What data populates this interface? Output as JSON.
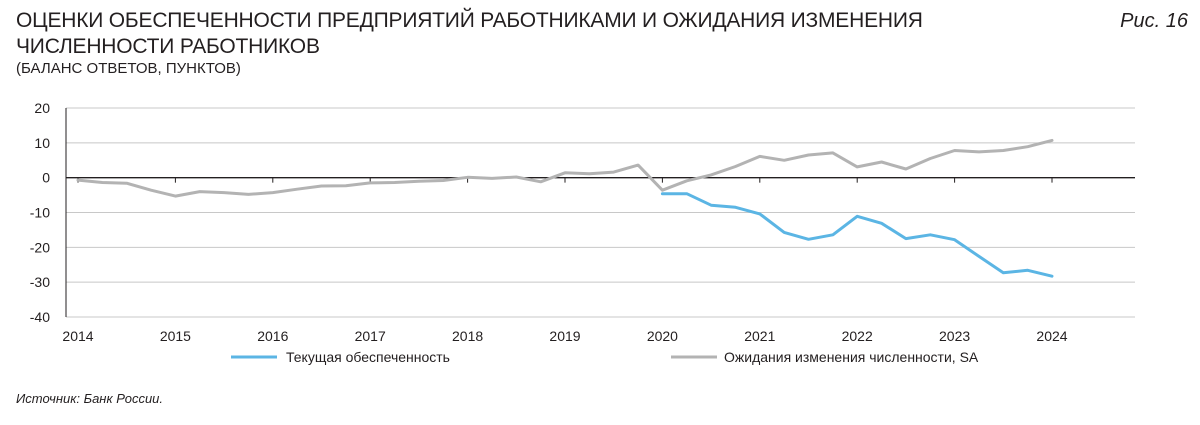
{
  "header": {
    "title": "ОЦЕНКИ ОБЕСПЕЧЕННОСТИ ПРЕДПРИЯТИЙ РАБОТНИКАМИ И ОЖИДАНИЯ ИЗМЕНЕНИЯ ЧИСЛЕННОСТИ РАБОТНИКОВ",
    "subtitle": "(БАЛАНС ОТВЕТОВ, ПУНКТОВ)",
    "figure_label": "Рис. 16"
  },
  "footer": {
    "source": "Источник: Банк России."
  },
  "colors": {
    "current": "#5bb5e4",
    "expectations": "#b3b3b3",
    "grid": "#c8c8c8",
    "axis": "#231f20"
  },
  "chart_data": {
    "type": "line",
    "title": "ОЦЕНКИ ОБЕСПЕЧЕННОСТИ ПРЕДПРИЯТИЙ РАБОТНИКАМИ И ОЖИДАНИЯ ИЗМЕНЕНИЯ ЧИСЛЕННОСТИ РАБОТНИКОВ",
    "subtitle": "(БАЛАНС ОТВЕТОВ, ПУНКТОВ)",
    "xlabel": "",
    "ylabel": "",
    "x_ticks": [
      "2014",
      "2015",
      "2016",
      "2017",
      "2018",
      "2019",
      "2020",
      "2021",
      "2022",
      "2023",
      "2024"
    ],
    "y_ticks": [
      20,
      10,
      0,
      -10,
      -20,
      -30,
      -40
    ],
    "ylim": [
      -40,
      20
    ],
    "xlim": [
      "2014Q1",
      "2024Q4"
    ],
    "grid": "horizontal",
    "legend_position": "bottom",
    "series": [
      {
        "name": "Текущая обеспеченность",
        "color": "#5bb5e4",
        "x": [
          "2020Q1",
          "2020Q2",
          "2020Q3",
          "2020Q4",
          "2021Q1",
          "2021Q2",
          "2021Q3",
          "2021Q4",
          "2022Q1",
          "2022Q2",
          "2022Q3",
          "2022Q4",
          "2023Q1",
          "2023Q2",
          "2023Q3",
          "2023Q4",
          "2024Q1"
        ],
        "values": [
          -4.6,
          -4.6,
          -7.9,
          -8.5,
          -10.4,
          -15.7,
          -17.7,
          -16.4,
          -11.1,
          -13.1,
          -17.5,
          -16.4,
          -17.8,
          -22.6,
          -27.3,
          -26.6,
          -28.3
        ]
      },
      {
        "name": "Ожидания изменения численности, SA",
        "color": "#b3b3b3",
        "x": [
          "2014Q1",
          "2014Q2",
          "2014Q3",
          "2014Q4",
          "2015Q1",
          "2015Q2",
          "2015Q3",
          "2015Q4",
          "2016Q1",
          "2016Q2",
          "2016Q3",
          "2016Q4",
          "2017Q1",
          "2017Q2",
          "2017Q3",
          "2017Q4",
          "2018Q1",
          "2018Q2",
          "2018Q3",
          "2018Q4",
          "2019Q1",
          "2019Q2",
          "2019Q3",
          "2019Q4",
          "2020Q1",
          "2020Q2",
          "2020Q3",
          "2020Q4",
          "2021Q1",
          "2021Q2",
          "2021Q3",
          "2021Q4",
          "2022Q1",
          "2022Q2",
          "2022Q3",
          "2022Q4",
          "2023Q1",
          "2023Q2",
          "2023Q3",
          "2023Q4",
          "2024Q1"
        ],
        "values": [
          -0.7,
          -1.4,
          -1.6,
          -3.6,
          -5.3,
          -4.0,
          -4.3,
          -4.8,
          -4.3,
          -3.3,
          -2.4,
          -2.3,
          -1.5,
          -1.4,
          -1.0,
          -0.8,
          0.1,
          -0.2,
          0.2,
          -1.2,
          1.4,
          1.1,
          1.6,
          3.6,
          -3.6,
          -0.9,
          0.8,
          3.2,
          6.1,
          5.0,
          6.5,
          7.1,
          3.1,
          4.5,
          2.5,
          5.5,
          7.8,
          7.4,
          7.8,
          8.9,
          10.7
        ]
      }
    ]
  }
}
